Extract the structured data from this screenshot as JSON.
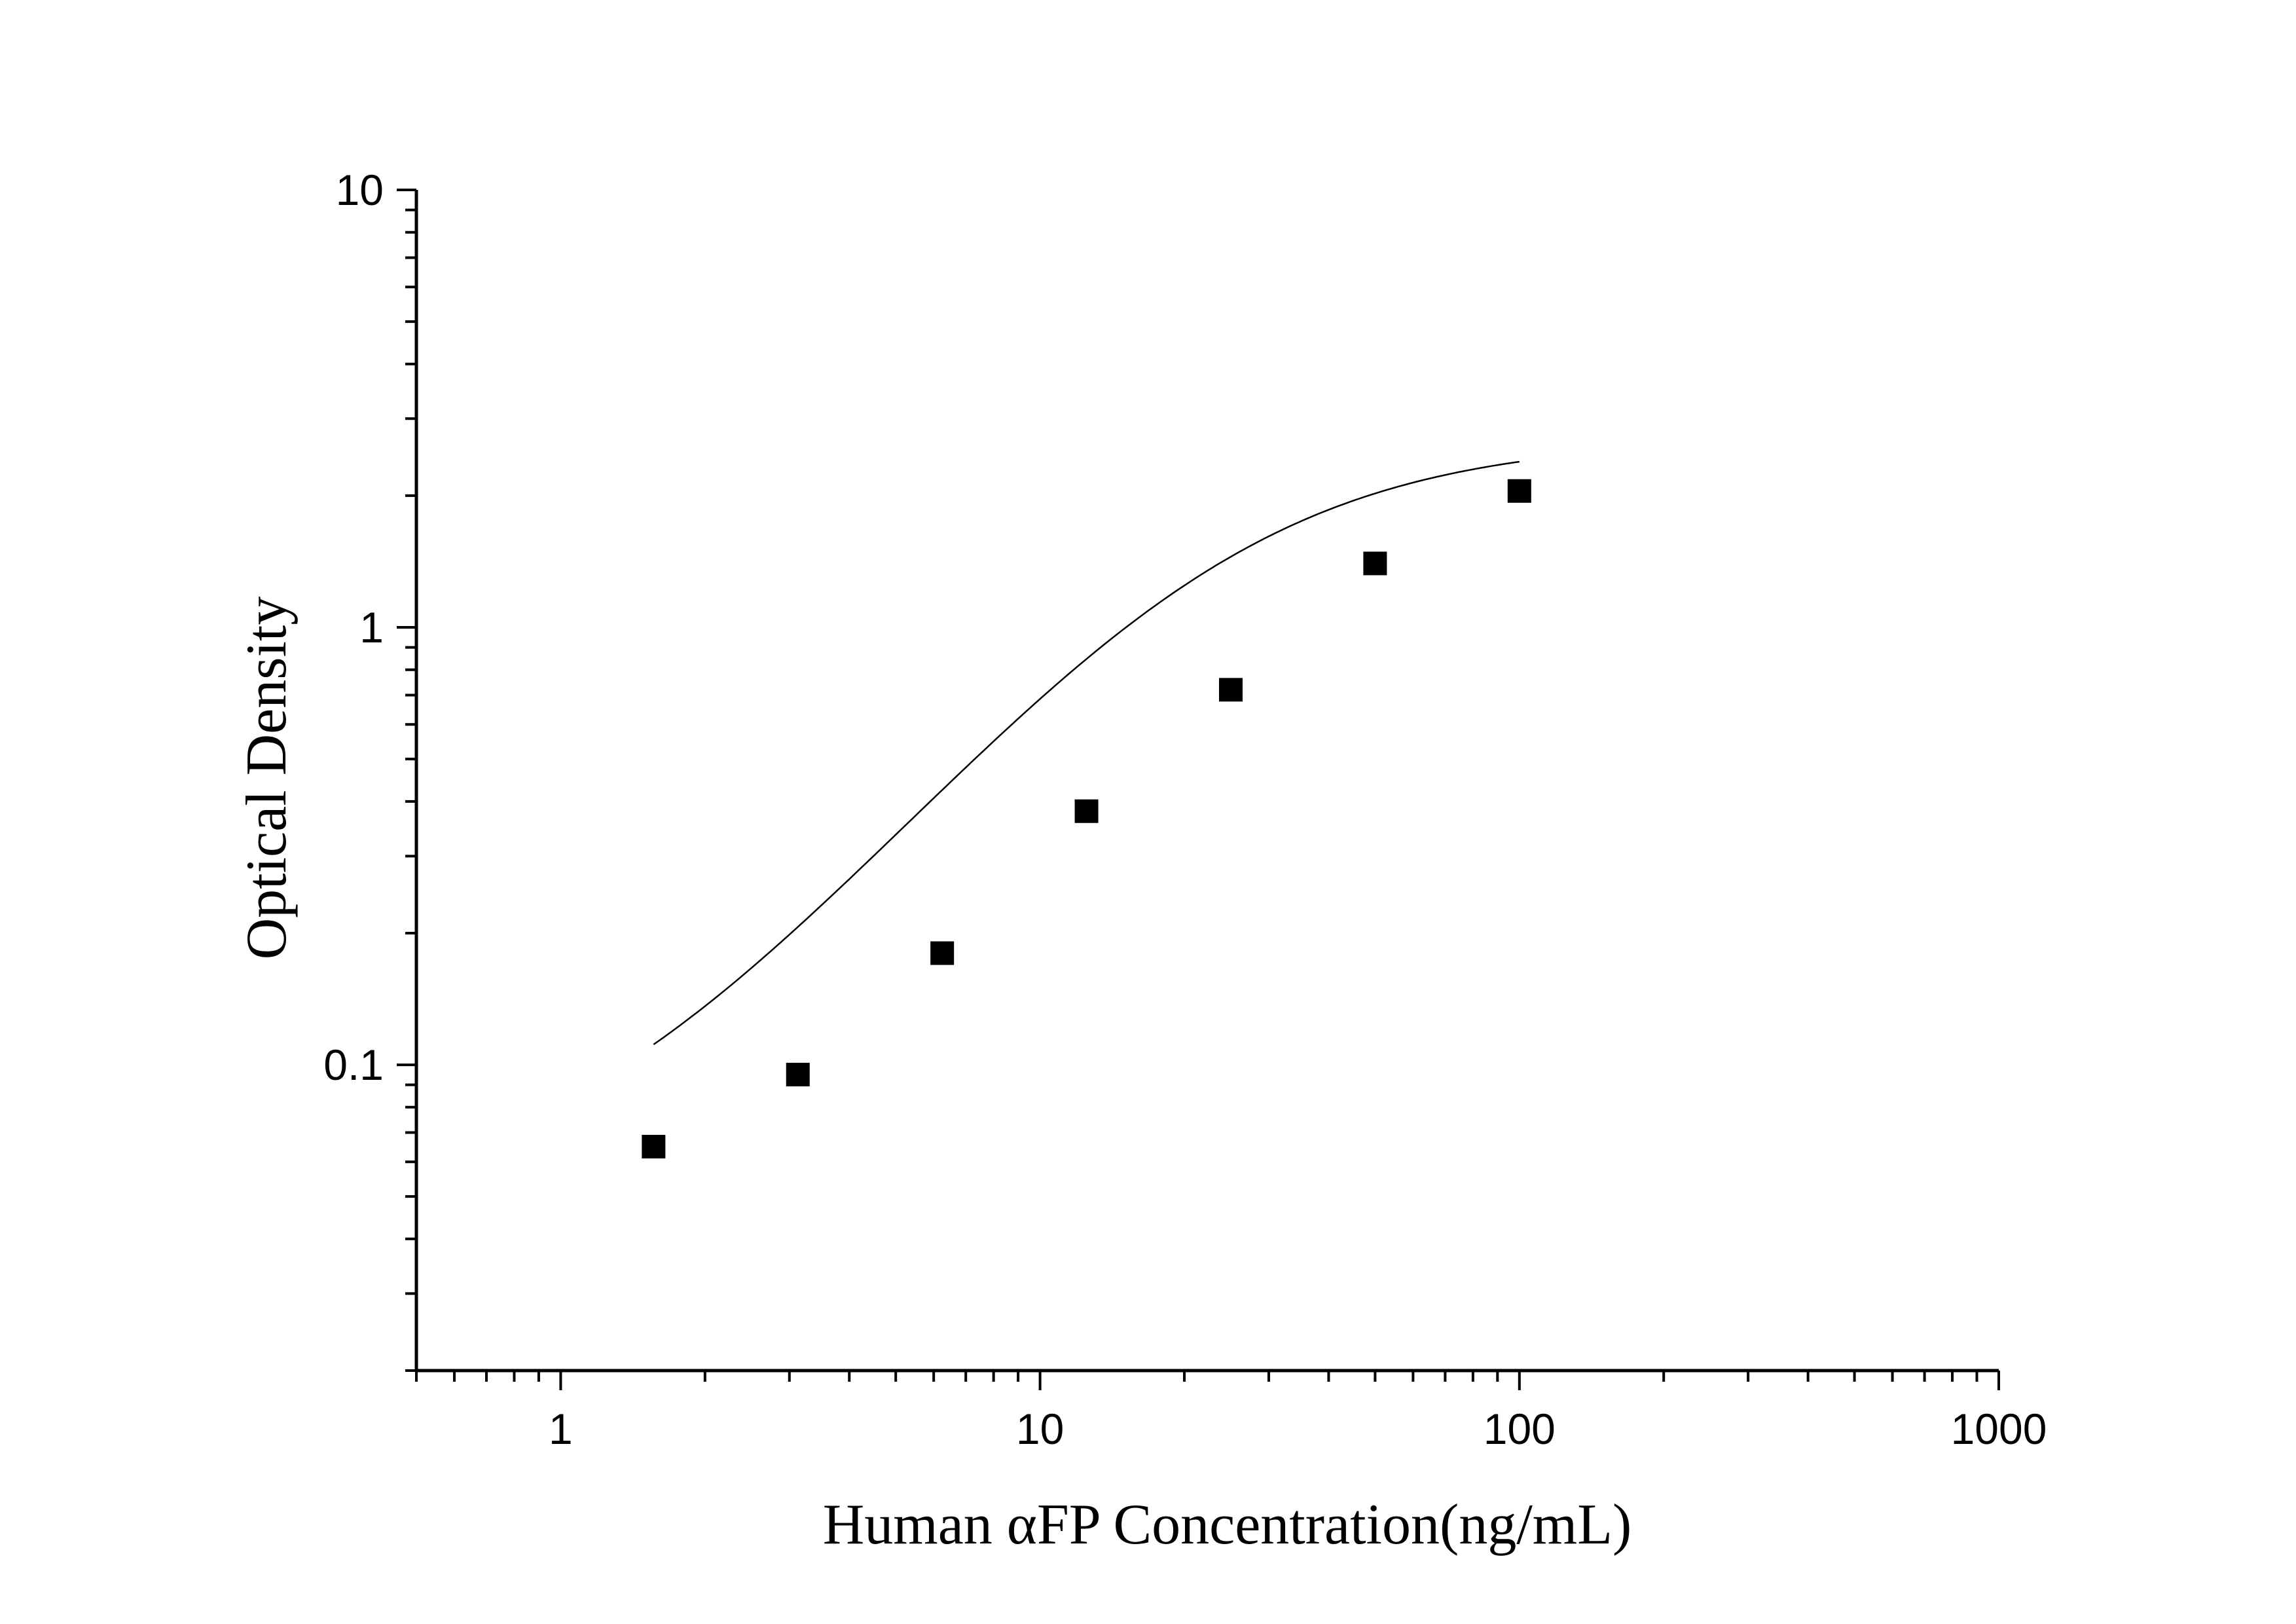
{
  "chart_data": {
    "type": "scatter",
    "title": "",
    "xlabel": "Human αFP Concentration(ng/mL)",
    "ylabel": "Optical Density",
    "x_scale": "log",
    "y_scale": "log",
    "xlim": [
      0.5,
      1000
    ],
    "ylim": [
      0.02,
      10
    ],
    "x_ticks": [
      {
        "value": 1,
        "label": "1"
      },
      {
        "value": 10,
        "label": "10"
      },
      {
        "value": 100,
        "label": "100"
      },
      {
        "value": 1000,
        "label": "1000"
      }
    ],
    "y_ticks": [
      {
        "value": 0.1,
        "label": "0.1"
      },
      {
        "value": 1,
        "label": "1"
      },
      {
        "value": 10,
        "label": "10"
      }
    ],
    "grid": false,
    "legend": "none",
    "series": [
      {
        "marker": "square",
        "color": "#000000",
        "x": [
          1.5625,
          3.125,
          6.25,
          12.5,
          25,
          50,
          100
        ],
        "y": [
          0.065,
          0.095,
          0.18,
          0.38,
          0.72,
          1.4,
          2.05
        ]
      }
    ],
    "fit": {
      "type": "4PL",
      "A": 0.048,
      "D": 2.7,
      "C": 23,
      "B": 1.38,
      "x_range": [
        1.5625,
        100
      ],
      "color": "#000000"
    }
  }
}
